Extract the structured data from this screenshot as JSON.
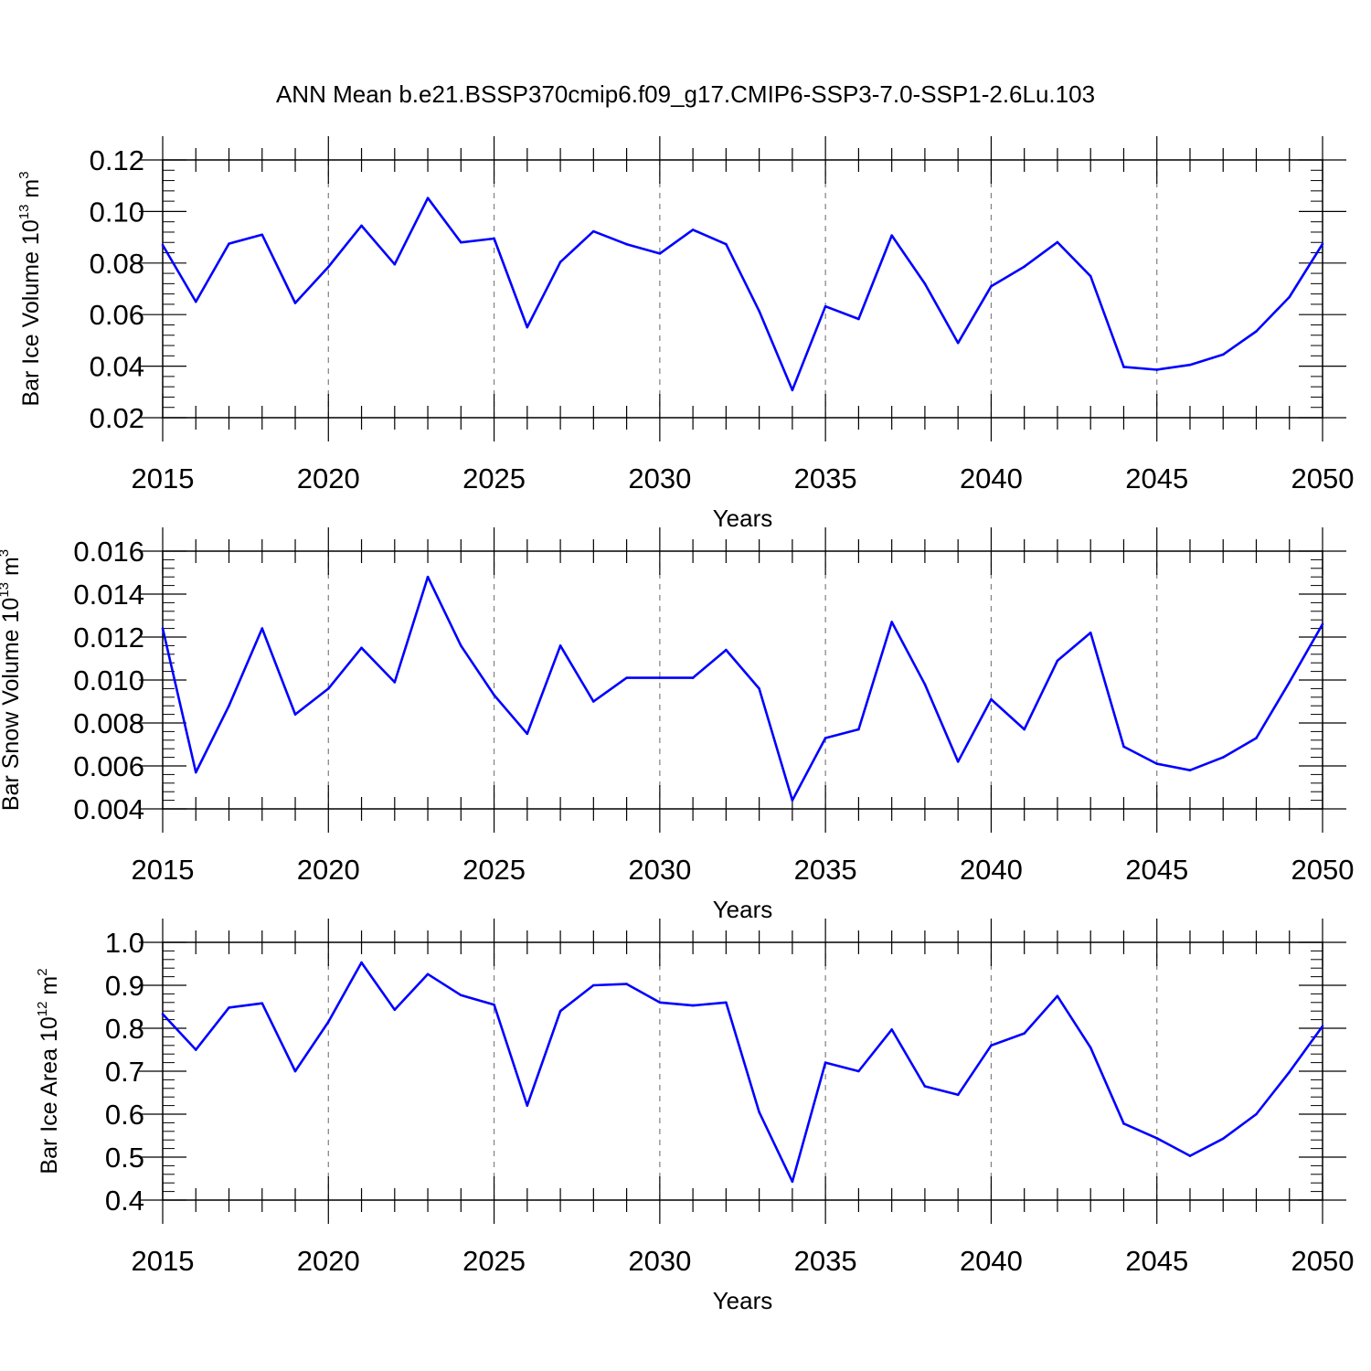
{
  "title": "ANN Mean b.e21.BSSP370cmip6.f09_g17.CMIP6-SSP3-7.0-SSP1-2.6Lu.103",
  "colors": {
    "line": "#0000ff",
    "axes": "#000000",
    "grid": "#808080"
  },
  "chart_data": [
    {
      "type": "line",
      "ylabel": {
        "text": "Bar Ice Volume 10",
        "sup": "13",
        "text2": " m",
        "sup2": "3"
      },
      "xlabel": "Years",
      "xlim": [
        2015,
        2050
      ],
      "ylim": [
        0.02,
        0.12
      ],
      "yticks": [
        0.02,
        0.04,
        0.06,
        0.08,
        0.1,
        0.12
      ],
      "ytick_labels": [
        "0.02",
        "0.04",
        "0.06",
        "0.08",
        "0.10",
        "0.12"
      ],
      "xticks": [
        2015,
        2020,
        2025,
        2030,
        2035,
        2040,
        2045,
        2050
      ],
      "xtick_labels": [
        "2015",
        "2020",
        "2025",
        "2030",
        "2035",
        "2040",
        "2045",
        "2050"
      ],
      "grid": "vertical dashed at major x ticks",
      "series": [
        {
          "x": [
            2015,
            2016,
            2017,
            2018,
            2019,
            2020,
            2021,
            2022,
            2023,
            2024,
            2025,
            2026,
            2027,
            2028,
            2029,
            2030,
            2031,
            2032,
            2033,
            2034,
            2035,
            2036,
            2037,
            2038,
            2039,
            2040,
            2041,
            2042,
            2043,
            2044,
            2045,
            2046,
            2047,
            2048,
            2049,
            2050
          ],
          "y": [
            0.087,
            0.065,
            0.0875,
            0.091,
            0.0645,
            0.0785,
            0.0945,
            0.0795,
            0.1052,
            0.088,
            0.0895,
            0.0551,
            0.0804,
            0.0923,
            0.0873,
            0.0837,
            0.0929,
            0.0873,
            0.0614,
            0.0307,
            0.0632,
            0.0583,
            0.0907,
            0.072,
            0.049,
            0.071,
            0.0786,
            0.0881,
            0.0749,
            0.0397,
            0.0386,
            0.0405,
            0.0445,
            0.0535,
            0.0668,
            0.0874
          ]
        }
      ]
    },
    {
      "type": "line",
      "ylabel": {
        "text": "Bar Snow Volume 10",
        "sup": "13",
        "text2": " m",
        "sup2": "3"
      },
      "xlabel": "Years",
      "xlim": [
        2015,
        2050
      ],
      "ylim": [
        0.004,
        0.016
      ],
      "yticks": [
        0.004,
        0.006,
        0.008,
        0.01,
        0.012,
        0.014,
        0.016
      ],
      "ytick_labels": [
        "0.004",
        "0.006",
        "0.008",
        "0.010",
        "0.012",
        "0.014",
        "0.016"
      ],
      "xticks": [
        2015,
        2020,
        2025,
        2030,
        2035,
        2040,
        2045,
        2050
      ],
      "xtick_labels": [
        "2015",
        "2020",
        "2025",
        "2030",
        "2035",
        "2040",
        "2045",
        "2050"
      ],
      "grid": "vertical dashed at major x ticks",
      "series": [
        {
          "x": [
            2015,
            2016,
            2017,
            2018,
            2019,
            2020,
            2021,
            2022,
            2023,
            2024,
            2025,
            2026,
            2027,
            2028,
            2029,
            2030,
            2031,
            2032,
            2033,
            2034,
            2035,
            2036,
            2037,
            2038,
            2039,
            2040,
            2041,
            2042,
            2043,
            2044,
            2045,
            2046,
            2047,
            2048,
            2049,
            2050
          ],
          "y": [
            0.0124,
            0.0057,
            0.0088,
            0.0124,
            0.0084,
            0.0096,
            0.0115,
            0.0099,
            0.0148,
            0.0116,
            0.0093,
            0.0075,
            0.0116,
            0.009,
            0.0101,
            0.0101,
            0.0101,
            0.0114,
            0.0096,
            0.0044,
            0.0073,
            0.0077,
            0.0127,
            0.0098,
            0.0062,
            0.0091,
            0.0077,
            0.0109,
            0.0122,
            0.0069,
            0.0061,
            0.0058,
            0.0064,
            0.0073,
            0.0099,
            0.0126
          ]
        }
      ]
    },
    {
      "type": "line",
      "ylabel": {
        "text": "Bar Ice Area 10",
        "sup": "12",
        "text2": " m",
        "sup2": "2"
      },
      "xlabel": "Years",
      "xlim": [
        2015,
        2050
      ],
      "ylim": [
        0.4,
        1.0
      ],
      "yticks": [
        0.4,
        0.5,
        0.6,
        0.7,
        0.8,
        0.9,
        1.0
      ],
      "ytick_labels": [
        "0.4",
        "0.5",
        "0.6",
        "0.7",
        "0.8",
        "0.9",
        "1.0"
      ],
      "xticks": [
        2015,
        2020,
        2025,
        2030,
        2035,
        2040,
        2045,
        2050
      ],
      "xtick_labels": [
        "2015",
        "2020",
        "2025",
        "2030",
        "2035",
        "2040",
        "2045",
        "2050"
      ],
      "grid": "vertical dashed at major x ticks",
      "series": [
        {
          "x": [
            2015,
            2016,
            2017,
            2018,
            2019,
            2020,
            2021,
            2022,
            2023,
            2024,
            2025,
            2026,
            2027,
            2028,
            2029,
            2030,
            2031,
            2032,
            2033,
            2034,
            2035,
            2036,
            2037,
            2038,
            2039,
            2040,
            2041,
            2042,
            2043,
            2044,
            2045,
            2046,
            2047,
            2048,
            2049,
            2050
          ],
          "y": [
            0.833,
            0.75,
            0.848,
            0.858,
            0.7,
            0.815,
            0.953,
            0.843,
            0.926,
            0.877,
            0.855,
            0.62,
            0.84,
            0.9,
            0.903,
            0.86,
            0.853,
            0.86,
            0.605,
            0.443,
            0.72,
            0.7,
            0.797,
            0.665,
            0.645,
            0.76,
            0.788,
            0.875,
            0.755,
            0.578,
            0.544,
            0.503,
            0.543,
            0.6,
            0.698,
            0.805
          ]
        }
      ]
    }
  ]
}
